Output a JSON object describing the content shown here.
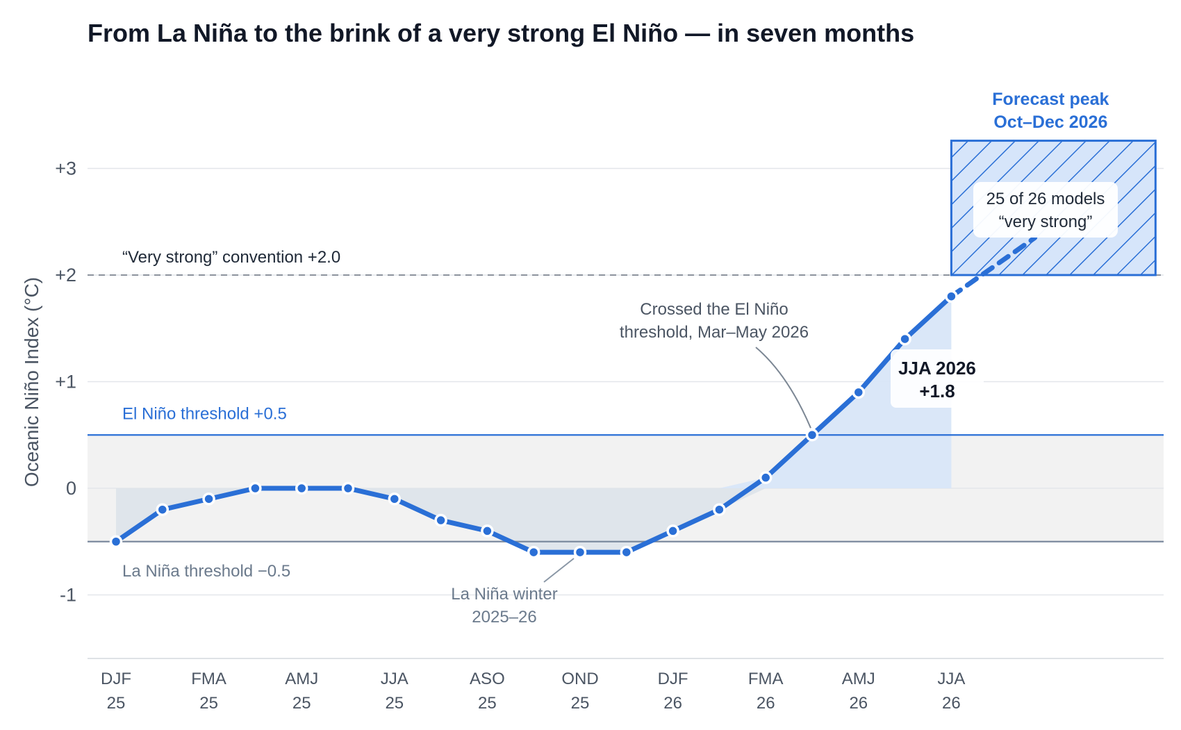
{
  "chart_data": {
    "type": "line",
    "title": "From La Niña to the brink of a very strong El Niño — in seven months",
    "ylabel": "Oceanic Niño Index  (°C)",
    "ylim": [
      -1.6,
      3.2
    ],
    "y_ticks": [
      {
        "value": 3,
        "label": "+3"
      },
      {
        "value": 2,
        "label": "+2"
      },
      {
        "value": 1,
        "label": "+1"
      },
      {
        "value": 0,
        "label": "0"
      },
      {
        "value": -1,
        "label": "-1"
      }
    ],
    "x_ticks": [
      {
        "index": 0,
        "season": "DJF",
        "year": "25"
      },
      {
        "index": 2,
        "season": "FMA",
        "year": "25"
      },
      {
        "index": 4,
        "season": "AMJ",
        "year": "25"
      },
      {
        "index": 6,
        "season": "JJA",
        "year": "25"
      },
      {
        "index": 8,
        "season": "ASO",
        "year": "25"
      },
      {
        "index": 10,
        "season": "OND",
        "year": "25"
      },
      {
        "index": 12,
        "season": "DJF",
        "year": "26"
      },
      {
        "index": 14,
        "season": "FMA",
        "year": "26"
      },
      {
        "index": 16,
        "season": "AMJ",
        "year": "26"
      },
      {
        "index": 18,
        "season": "JJA",
        "year": "26"
      }
    ],
    "series": [
      {
        "values": [
          -0.5,
          -0.2,
          -0.1,
          0.0,
          0.0,
          0.0,
          -0.1,
          -0.3,
          -0.4,
          -0.6,
          -0.6,
          -0.6,
          -0.4,
          -0.2,
          0.1,
          0.5,
          0.9,
          1.4,
          1.8
        ]
      }
    ],
    "forecast_path": [
      {
        "x": 18,
        "y": 1.8
      },
      {
        "x": 19.8,
        "y": 2.35
      }
    ],
    "thresholds": {
      "el_nino": {
        "value": 0.5,
        "label": "El Niño threshold  +0.5"
      },
      "la_nina": {
        "value": -0.5,
        "label": "La Niña threshold  −0.5"
      },
      "very_strong": {
        "value": 2.0,
        "label": "“Very strong” convention  +2.0"
      }
    },
    "forecast_box": {
      "x_start": 18,
      "x_end": 22.4,
      "y_low": 2.0,
      "y_high": 3.26,
      "title_line1": "Forecast peak",
      "title_line2": "Oct–Dec 2026",
      "note_line1": "25 of 26 models",
      "note_line2": "“very strong”"
    },
    "annotations": {
      "crossed_line1": "Crossed the El Niño",
      "crossed_line2": "threshold, Mar–May 2026",
      "lanina_line1": "La Niña winter",
      "lanina_line2": "2025–26",
      "jja_line1": "JJA 2026",
      "jja_line2": "+1.8"
    },
    "colors": {
      "line": "#2a6fd6",
      "el_nino": "#2a6fd6",
      "la_nina": "#7c8a9e",
      "neutral_band": "#f2f2f2",
      "warm_fill": "#d8e6f8",
      "cool_fill": "#dde3ea",
      "forecast_fill": "#d6e5fa"
    },
    "grid": true
  }
}
